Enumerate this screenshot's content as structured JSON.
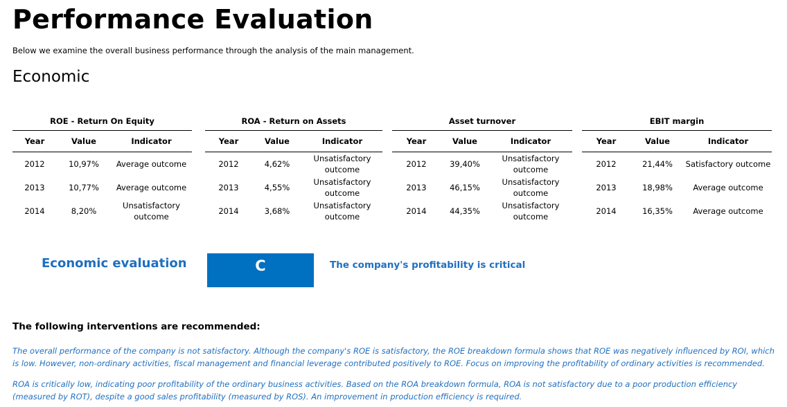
{
  "page": {
    "title": "Performance Evaluation",
    "subtitle": "Below we examine the overall business performance through the analysis of the main management.",
    "section": "Economic"
  },
  "column_headers": {
    "year": "Year",
    "value": "Value",
    "indicator": "Indicator"
  },
  "tables": [
    {
      "title": "ROE - Return On Equity",
      "rows": [
        {
          "year": "2012",
          "value": "10,97%",
          "indicator": "Average outcome"
        },
        {
          "year": "2013",
          "value": "10,77%",
          "indicator": "Average outcome"
        },
        {
          "year": "2014",
          "value": "8,20%",
          "indicator": "Unsatisfactory outcome"
        }
      ]
    },
    {
      "title": "ROA - Return on Assets",
      "rows": [
        {
          "year": "2012",
          "value": "4,62%",
          "indicator": "Unsatisfactory outcome"
        },
        {
          "year": "2013",
          "value": "4,55%",
          "indicator": "Unsatisfactory outcome"
        },
        {
          "year": "2014",
          "value": "3,68%",
          "indicator": "Unsatisfactory outcome"
        }
      ]
    },
    {
      "title": "Asset turnover",
      "rows": [
        {
          "year": "2012",
          "value": "39,40%",
          "indicator": "Unsatisfactory outcome"
        },
        {
          "year": "2013",
          "value": "46,15%",
          "indicator": "Unsatisfactory outcome"
        },
        {
          "year": "2014",
          "value": "44,35%",
          "indicator": "Unsatisfactory outcome"
        }
      ]
    },
    {
      "title": "EBIT margin",
      "rows": [
        {
          "year": "2012",
          "value": "21,44%",
          "indicator": "Satisfactory outcome"
        },
        {
          "year": "2013",
          "value": "18,98%",
          "indicator": "Average outcome"
        },
        {
          "year": "2014",
          "value": "16,35%",
          "indicator": "Average outcome"
        }
      ]
    }
  ],
  "evaluation": {
    "label": "Economic evaluation",
    "grade": "C",
    "text": "The company's profitability is critical",
    "accent_color": "#0070c0"
  },
  "recommendations": {
    "heading": "The following interventions are recommended:",
    "paragraphs": [
      "The overall performance of the company is not satisfactory. Although the company's ROE is satisfactory, the ROE breakdown formula shows that ROE was negatively influenced by ROI, which is low. However, non-ordinary activities, fiscal management and financial leverage contributed positively to ROE. Focus on improving the profitability of ordinary activities is recommended.",
      "ROA is critically low, indicating poor profitability of the ordinary business activities. Based on the ROA breakdown formula, ROA is not satisfactory due to a poor production efficiency (measured by ROT), despite a good sales profitability (measured by ROS). An improvement in production efficiency is required."
    ]
  }
}
